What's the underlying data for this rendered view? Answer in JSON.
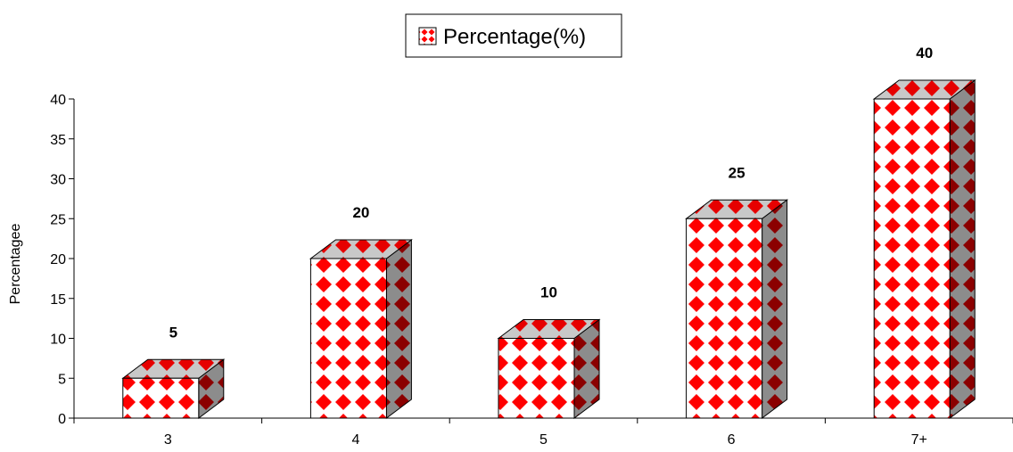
{
  "chart_data": {
    "type": "bar",
    "style": "3d-column",
    "title": "",
    "xlabel": "",
    "ylabel": "Percentagee",
    "categories": [
      "3",
      "4",
      "5",
      "6",
      "7+"
    ],
    "series": [
      {
        "name": "Percentage(%)",
        "values": [
          5,
          20,
          10,
          25,
          40
        ]
      }
    ],
    "data_labels": [
      "5",
      "20",
      "10",
      "25",
      "40"
    ],
    "ylim": [
      0,
      40
    ],
    "yticks": [
      0,
      5,
      10,
      15,
      20,
      25,
      30,
      35,
      40
    ],
    "ytick_labels": [
      "0",
      "5",
      "10",
      "15",
      "20",
      "25",
      "30",
      "35",
      "40"
    ],
    "grid": false,
    "legend": "top-center",
    "colors": {
      "pattern_fill": "#ff0000",
      "pattern_background": "#ffffff",
      "side_fill": "#8b0000",
      "side_background": "#8c8c8c",
      "top_background": "#c8c8c8",
      "outline": "#000000"
    }
  }
}
